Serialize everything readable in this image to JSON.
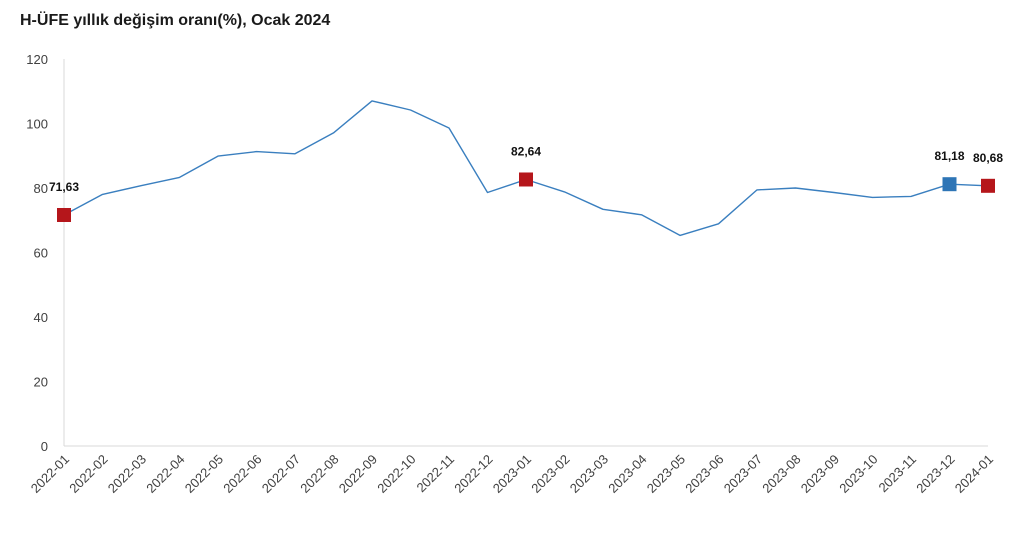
{
  "chart_data": {
    "type": "line",
    "title": "H-ÜFE yıllık değişim oranı(%), Ocak 2024",
    "xlabel": "",
    "ylabel": "",
    "ylim": [
      0,
      120
    ],
    "yticks": [
      0,
      20,
      40,
      60,
      80,
      100,
      120
    ],
    "grid": false,
    "categories": [
      "2022-01",
      "2022-02",
      "2022-03",
      "2022-04",
      "2022-05",
      "2022-06",
      "2022-07",
      "2022-08",
      "2022-09",
      "2022-10",
      "2022-11",
      "2022-12",
      "2023-01",
      "2023-02",
      "2023-03",
      "2023-04",
      "2023-05",
      "2023-06",
      "2023-07",
      "2023-08",
      "2023-09",
      "2023-10",
      "2023-11",
      "2023-12",
      "2024-01"
    ],
    "series": [
      {
        "color": "#3a7fbf",
        "values": [
          71.63,
          78.0,
          80.7,
          83.3,
          89.9,
          91.3,
          90.6,
          97.1,
          107.0,
          104.2,
          98.6,
          78.6,
          82.64,
          78.8,
          73.4,
          71.7,
          65.3,
          68.9,
          79.4,
          80.0,
          78.6,
          77.1,
          77.4,
          81.18,
          80.68
        ]
      }
    ],
    "highlighted_points": [
      {
        "category": "2022-01",
        "value": 71.63,
        "label": "71,63",
        "color": "#b5161b"
      },
      {
        "category": "2023-01",
        "value": 82.64,
        "label": "82,64",
        "color": "#b5161b"
      },
      {
        "category": "2023-12",
        "value": 81.18,
        "label": "81,18",
        "color": "#2e75b6"
      },
      {
        "category": "2024-01",
        "value": 80.68,
        "label": "80,68",
        "color": "#b5161b"
      }
    ]
  }
}
